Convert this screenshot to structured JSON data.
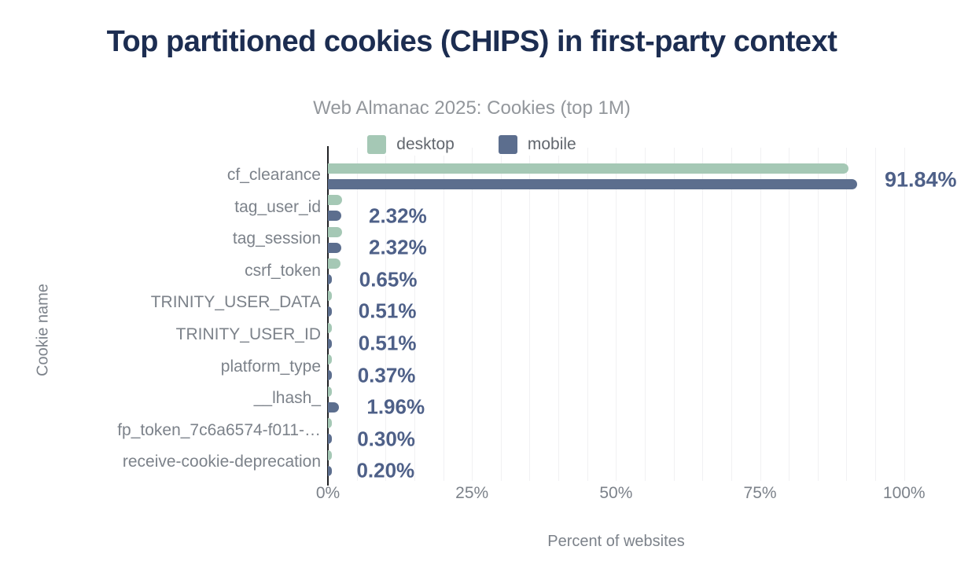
{
  "header": {
    "title": "Top partitioned cookies (CHIPS) in first-party context",
    "subtitle": "Web Almanac 2025: Cookies (top 1M)"
  },
  "chart_data": {
    "type": "bar",
    "orientation": "horizontal",
    "title": "Top partitioned cookies (CHIPS) in first-party context",
    "subtitle": "Web Almanac 2025: Cookies (top 1M)",
    "xlabel": "Percent of websites",
    "ylabel": "Cookie name",
    "xlim": [
      0,
      100
    ],
    "grid": "vertical minor gridlines every 5%",
    "legend_position": "top",
    "categories": [
      "cf_clearance",
      "tag_user_id",
      "tag_session",
      "csrf_token",
      "TRINITY_USER_DATA",
      "TRINITY_USER_ID",
      "platform_type",
      "__lhash_",
      "fp_token_7c6a6574-f011-…",
      "receive-cookie-deprecation"
    ],
    "series": [
      {
        "name": "desktop",
        "color": "#a5c8b5",
        "values": [
          90.4,
          2.4,
          2.5,
          2.2,
          0.5,
          0.45,
          0.4,
          0.35,
          0.45,
          0.2
        ]
      },
      {
        "name": "mobile",
        "color": "#5c6e8e",
        "values": [
          91.84,
          2.32,
          2.32,
          0.65,
          0.51,
          0.51,
          0.37,
          1.96,
          0.3,
          0.2
        ]
      }
    ],
    "value_labels": [
      "91.84%",
      "2.32%",
      "2.32%",
      "0.65%",
      "0.51%",
      "0.51%",
      "0.37%",
      "1.96%",
      "0.30%",
      "0.20%"
    ],
    "xticks": {
      "labels": [
        "0%",
        "25%",
        "50%",
        "75%",
        "100%"
      ],
      "values": [
        0,
        25,
        50,
        75,
        100
      ]
    }
  },
  "colors": {
    "desktop": "#a5c8b5",
    "mobile": "#5c6e8e",
    "value_label": "#4e6088",
    "title": "#1c2d51",
    "subtitle": "#93979c",
    "axis_text": "#7c828a",
    "gridline": "#f1f1f3",
    "axis_line": "#202124",
    "background": "#ffffff"
  }
}
